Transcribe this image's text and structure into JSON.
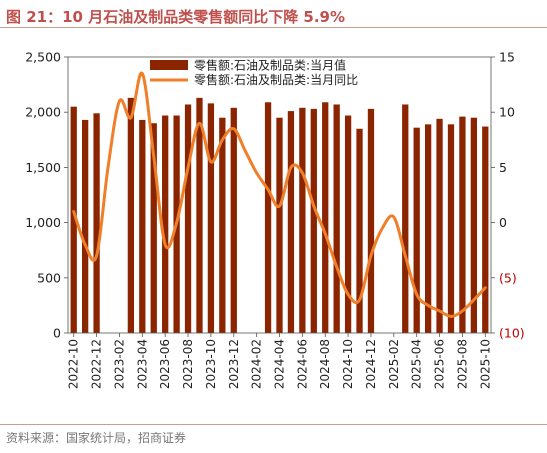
{
  "header": {
    "title": "图 21：10 月石油及制品类零售额同比下降 5.9%"
  },
  "footer": {
    "source": "资料来源：国家统计局，招商证券"
  },
  "colors": {
    "bar": "#8b2500",
    "line": "#f07f2a",
    "negative": "#c00000",
    "title": "#c0504d"
  },
  "chart_data": {
    "type": "bar+line",
    "months": [
      "2022-10",
      "2022-11",
      "2022-12",
      "2023-01",
      "2023-02",
      "2023-03",
      "2023-04",
      "2023-05",
      "2023-06",
      "2023-07",
      "2023-08",
      "2023-09",
      "2023-10",
      "2023-11",
      "2023-12",
      "2024-01",
      "2024-02",
      "2024-03",
      "2024-04",
      "2024-05",
      "2024-06",
      "2024-07",
      "2024-08",
      "2024-09",
      "2024-10",
      "2024-11",
      "2024-12",
      "2025-01",
      "2025-02",
      "2025-03",
      "2025-04",
      "2025-05",
      "2025-06",
      "2025-07",
      "2025-08",
      "2025-09",
      "2025-10"
    ],
    "x_tick_labels": [
      "2022-10",
      "2022-12",
      "2023-02",
      "2023-04",
      "2023-06",
      "2023-08",
      "2023-10",
      "2023-12",
      "2024-02",
      "2024-04",
      "2024-06",
      "2024-08",
      "2024-10",
      "2024-12",
      "2025-02",
      "2025-04",
      "2025-06",
      "2025-08",
      "2025-10"
    ],
    "series": [
      {
        "name": "零售额:石油及制品类:当月值",
        "type": "bar",
        "axis": "left",
        "values": [
          2050,
          1930,
          1990,
          null,
          null,
          2130,
          1930,
          1900,
          1970,
          1970,
          2070,
          2130,
          2080,
          1950,
          2040,
          null,
          null,
          2090,
          1950,
          2010,
          2040,
          2030,
          2090,
          2070,
          1970,
          1850,
          2030,
          null,
          null,
          2070,
          1860,
          1890,
          1940,
          1890,
          1960,
          1950,
          1870
        ]
      },
      {
        "name": "零售额:石油及制品类:当月同比",
        "type": "line",
        "axis": "right",
        "values": [
          1,
          -2,
          -3,
          5,
          11,
          9.5,
          13.5,
          6,
          -2,
          0,
          5,
          9,
          5.5,
          7.5,
          8.5,
          6.5,
          4.5,
          3,
          1.5,
          5,
          4.5,
          1.5,
          -1,
          -4,
          -6.5,
          -7,
          -3,
          -0.5,
          0.5,
          -3,
          -6.5,
          -7.5,
          -8,
          -8.5,
          -8,
          -7,
          -5.9
        ]
      }
    ],
    "y_left": {
      "min": 0,
      "max": 2500,
      "ticks": [
        0,
        500,
        1000,
        1500,
        2000,
        2500
      ],
      "tick_labels": [
        "0",
        "500",
        "1,000",
        "1,500",
        "2,000",
        "2,500"
      ]
    },
    "y_right": {
      "min": -10,
      "max": 15,
      "ticks": [
        -10,
        -5,
        0,
        5,
        10,
        15
      ],
      "tick_labels": [
        "(10)",
        "(5)",
        "0",
        "5",
        "10",
        "15"
      ]
    },
    "legend": {
      "position": "top-center"
    }
  }
}
